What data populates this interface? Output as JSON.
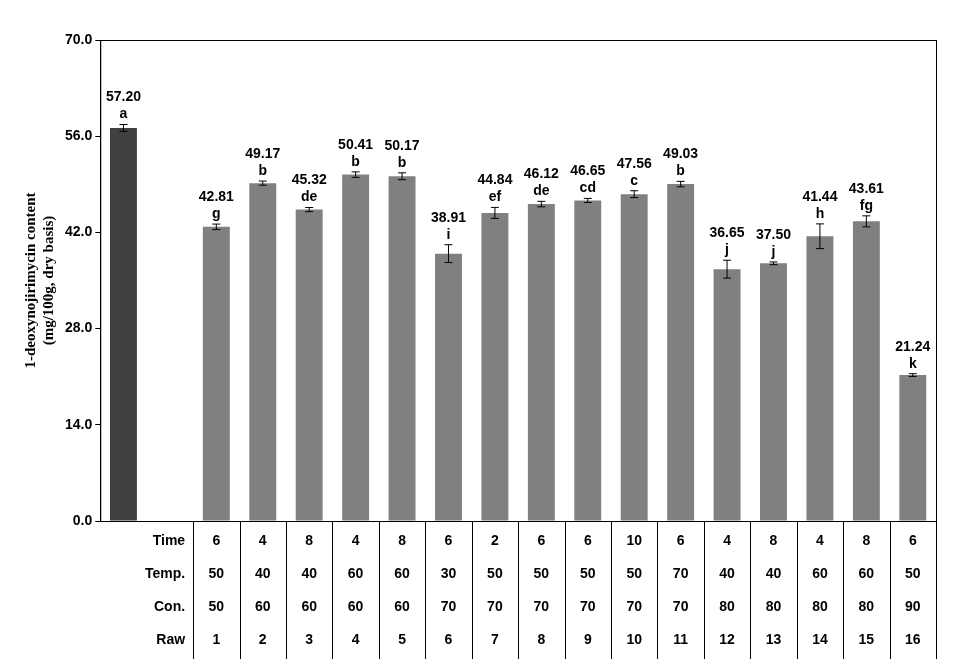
{
  "chart_data": {
    "type": "bar",
    "y_label": [
      "1-deoxynojirimycin content",
      "(mg/100g, dry basis)"
    ],
    "categories": [
      null,
      null,
      "1",
      "2",
      "3",
      "4",
      "5",
      "6",
      "7",
      "8",
      "9",
      "10",
      "11",
      "12",
      "13",
      "14",
      "15",
      "16"
    ],
    "values": [
      57.2,
      null,
      42.81,
      49.17,
      45.32,
      50.41,
      50.17,
      38.91,
      44.84,
      46.12,
      46.65,
      47.56,
      49.03,
      36.65,
      37.5,
      41.44,
      43.61,
      21.24
    ],
    "value_labels": [
      "57.20",
      null,
      "42.81",
      "49.17",
      "45.32",
      "50.41",
      "50.17",
      "38.91",
      "44.84",
      "46.12",
      "46.65",
      "47.56",
      "49.03",
      "36.65",
      "37.50",
      "41.44",
      "43.61",
      "21.24"
    ],
    "errors": [
      0.5,
      null,
      0.4,
      0.3,
      0.3,
      0.4,
      0.5,
      1.3,
      0.8,
      0.4,
      0.3,
      0.5,
      0.4,
      1.3,
      0.2,
      1.8,
      0.8,
      0.2
    ],
    "letters": [
      "a",
      null,
      "g",
      "b",
      "de",
      "b",
      "b",
      "i",
      "ef",
      "de",
      "cd",
      "c",
      "b",
      "j",
      "j",
      "h",
      "fg",
      "k"
    ],
    "colors": [
      "#404040",
      null,
      "#808080",
      "#808080",
      "#808080",
      "#808080",
      "#808080",
      "#808080",
      "#808080",
      "#808080",
      "#808080",
      "#808080",
      "#808080",
      "#808080",
      "#808080",
      "#808080",
      "#808080",
      "#808080"
    ],
    "table": {
      "rows": [
        {
          "label": "Time",
          "values": [
            6,
            4,
            8,
            4,
            8,
            6,
            2,
            6,
            6,
            10,
            6,
            4,
            8,
            4,
            8,
            6
          ]
        },
        {
          "label": "Temp.",
          "values": [
            50,
            40,
            40,
            60,
            60,
            30,
            50,
            50,
            50,
            50,
            70,
            40,
            40,
            60,
            60,
            50
          ]
        },
        {
          "label": "Con.",
          "values": [
            50,
            60,
            60,
            60,
            60,
            70,
            70,
            70,
            70,
            70,
            70,
            80,
            80,
            80,
            80,
            90
          ]
        }
      ],
      "category_label": "Raw"
    },
    "ylim": [
      0,
      70
    ],
    "yticks": [
      {
        "value": 0,
        "label": "0.0"
      },
      {
        "value": 14,
        "label": "14.0"
      },
      {
        "value": 28,
        "label": "28.0"
      },
      {
        "value": 42,
        "label": "42.0"
      },
      {
        "value": 56,
        "label": "56.0"
      },
      {
        "value": 70,
        "label": "70.0"
      }
    ],
    "grid": false,
    "data_labels": true
  }
}
